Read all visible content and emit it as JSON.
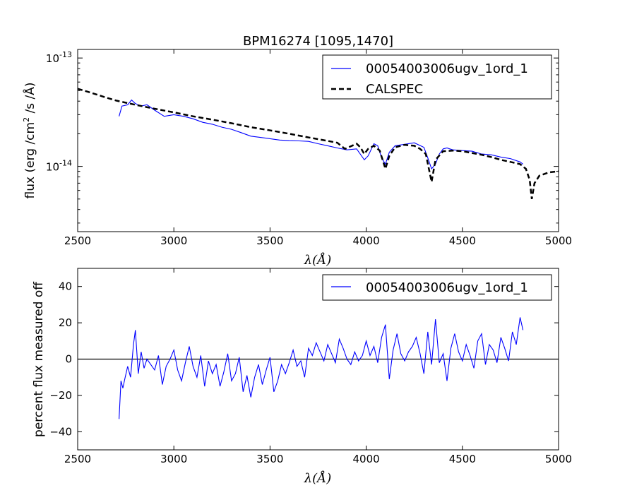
{
  "chart_data": [
    {
      "type": "line",
      "title": "BPM16274 [1095,1470]",
      "xlabel": "λ(Å)",
      "ylabel": "flux (erg /cm² /s /Å)",
      "yscale": "log",
      "xlim": [
        2500,
        5000
      ],
      "ylim": [
        2.5e-15,
        1.2e-13
      ],
      "x_ticks": [
        2500,
        3000,
        3500,
        4000,
        4500,
        5000
      ],
      "x_tick_labels": [
        "2500",
        "3000",
        "3500",
        "4000",
        "4500",
        "5000"
      ],
      "y_ticks": [
        1e-14,
        1e-13
      ],
      "y_tick_bases": [
        "10",
        "10"
      ],
      "y_tick_exponents": [
        "-14",
        "-13"
      ],
      "legend_position": "upper right",
      "series": [
        {
          "name": "00054003006ugv_1ord_1",
          "color": "#0000ff",
          "style": "solid",
          "x": [
            2715,
            2730,
            2760,
            2780,
            2800,
            2830,
            2860,
            2900,
            2950,
            3000,
            3050,
            3100,
            3150,
            3200,
            3250,
            3300,
            3350,
            3400,
            3450,
            3500,
            3550,
            3600,
            3650,
            3700,
            3750,
            3800,
            3850,
            3900,
            3950,
            3990,
            4010,
            4040,
            4060,
            4080,
            4100,
            4120,
            4150,
            4200,
            4250,
            4300,
            4320,
            4340,
            4360,
            4380,
            4400,
            4420,
            4450,
            4500,
            4550,
            4600,
            4650,
            4700,
            4750,
            4800,
            4815
          ],
          "y": [
            2.9e-14,
            3.6e-14,
            3.7e-14,
            4.1e-14,
            3.8e-14,
            3.6e-14,
            3.7e-14,
            3.3e-14,
            2.9e-14,
            3e-14,
            2.9e-14,
            2.75e-14,
            2.55e-14,
            2.45e-14,
            2.3e-14,
            2.2e-14,
            2.05e-14,
            1.9e-14,
            1.85e-14,
            1.8e-14,
            1.75e-14,
            1.73e-14,
            1.72e-14,
            1.7e-14,
            1.62e-14,
            1.55e-14,
            1.48e-14,
            1.42e-14,
            1.45e-14,
            1.15e-14,
            1.25e-14,
            1.62e-14,
            1.55e-14,
            1.2e-14,
            1.05e-14,
            1.35e-14,
            1.55e-14,
            1.6e-14,
            1.65e-14,
            1.5e-14,
            1.2e-14,
            9.5e-15,
            1.05e-14,
            1.3e-14,
            1.45e-14,
            1.48e-14,
            1.42e-14,
            1.4e-14,
            1.38e-14,
            1.3e-14,
            1.28e-14,
            1.22e-14,
            1.18e-14,
            1.1e-14,
            1.05e-14
          ]
        },
        {
          "name": "CALSPEC",
          "color": "#000000",
          "style": "dashed",
          "x": [
            2500,
            2550,
            2600,
            2650,
            2700,
            2800,
            2900,
            3000,
            3100,
            3200,
            3300,
            3400,
            3500,
            3600,
            3700,
            3800,
            3850,
            3890,
            3950,
            3970,
            3990,
            4010,
            4040,
            4070,
            4100,
            4120,
            4150,
            4200,
            4250,
            4280,
            4310,
            4340,
            4360,
            4400,
            4450,
            4500,
            4550,
            4600,
            4650,
            4700,
            4750,
            4800,
            4830,
            4850,
            4861,
            4875,
            4900,
            4950,
            5000
          ],
          "y": [
            5.2e-14,
            4.9e-14,
            4.6e-14,
            4.3e-14,
            4.05e-14,
            3.7e-14,
            3.4e-14,
            3.15e-14,
            2.9e-14,
            2.7e-14,
            2.5e-14,
            2.3e-14,
            2.15e-14,
            2e-14,
            1.85e-14,
            1.72e-14,
            1.65e-14,
            1.45e-14,
            1.62e-14,
            1.5e-14,
            1.3e-14,
            1.45e-14,
            1.55e-14,
            1.4e-14,
            9.5e-15,
            1.25e-14,
            1.5e-14,
            1.58e-14,
            1.55e-14,
            1.45e-14,
            1.3e-14,
            7.2e-15,
            1.15e-14,
            1.38e-14,
            1.4e-14,
            1.38e-14,
            1.33e-14,
            1.28e-14,
            1.22e-14,
            1.15e-14,
            1.1e-14,
            1.05e-14,
            9.5e-15,
            7.5e-15,
            5e-15,
            7e-15,
            8.2e-15,
            8.8e-15,
            9e-15
          ]
        }
      ]
    },
    {
      "type": "line",
      "title": "",
      "xlabel": "λ(Å)",
      "ylabel": "percent flux measured off",
      "xlim": [
        2500,
        5000
      ],
      "ylim": [
        -50,
        50
      ],
      "x_ticks": [
        2500,
        3000,
        3500,
        4000,
        4500,
        5000
      ],
      "x_tick_labels": [
        "2500",
        "3000",
        "3500",
        "4000",
        "4500",
        "5000"
      ],
      "y_ticks": [
        -40,
        -20,
        0,
        20,
        40
      ],
      "y_tick_labels": [
        "−40",
        "−20",
        "0",
        "20",
        "40"
      ],
      "reference_line": 0,
      "legend_position": "upper right",
      "series": [
        {
          "name": "00054003006ugv_1ord_1",
          "color": "#0000ff",
          "style": "solid",
          "x": [
            2715,
            2725,
            2735,
            2745,
            2760,
            2775,
            2790,
            2800,
            2815,
            2830,
            2845,
            2860,
            2880,
            2900,
            2920,
            2940,
            2960,
            2980,
            3000,
            3020,
            3040,
            3060,
            3080,
            3100,
            3120,
            3140,
            3160,
            3180,
            3200,
            3220,
            3240,
            3260,
            3280,
            3300,
            3320,
            3340,
            3360,
            3380,
            3400,
            3420,
            3440,
            3460,
            3480,
            3500,
            3520,
            3540,
            3560,
            3580,
            3600,
            3620,
            3640,
            3660,
            3680,
            3700,
            3720,
            3740,
            3760,
            3780,
            3800,
            3820,
            3840,
            3860,
            3880,
            3900,
            3920,
            3940,
            3960,
            3980,
            4000,
            4020,
            4040,
            4060,
            4080,
            4100,
            4120,
            4140,
            4160,
            4180,
            4200,
            4220,
            4240,
            4260,
            4280,
            4300,
            4320,
            4340,
            4360,
            4380,
            4400,
            4420,
            4440,
            4460,
            4480,
            4500,
            4520,
            4540,
            4560,
            4580,
            4600,
            4620,
            4640,
            4660,
            4680,
            4700,
            4720,
            4740,
            4760,
            4780,
            4800,
            4815
          ],
          "y": [
            -33,
            -12,
            -16,
            -11,
            -4,
            -10,
            8,
            16,
            -8,
            4,
            -5,
            0,
            -3,
            -6,
            2,
            -14,
            -4,
            0,
            5,
            -6,
            -12,
            -2,
            7,
            -4,
            -10,
            2,
            -15,
            -1,
            -8,
            -3,
            -15,
            -7,
            3,
            -12,
            -8,
            1,
            -18,
            -9,
            -21,
            -10,
            -3,
            -14,
            -6,
            1,
            -18,
            -12,
            -3,
            -8,
            -2,
            5,
            -4,
            -1,
            -10,
            6,
            2,
            9,
            4,
            -1,
            8,
            3,
            -2,
            11,
            6,
            0,
            -3,
            4,
            -1,
            2,
            10,
            2,
            7,
            -2,
            12,
            19,
            -11,
            5,
            14,
            3,
            -1,
            4,
            7,
            12,
            3,
            -8,
            15,
            -3,
            22,
            -2,
            3,
            -12,
            6,
            14,
            4,
            -1,
            8,
            2,
            -5,
            10,
            14,
            -3,
            8,
            5,
            -2,
            12,
            6,
            -1,
            15,
            8,
            23,
            16
          ]
        }
      ]
    }
  ]
}
